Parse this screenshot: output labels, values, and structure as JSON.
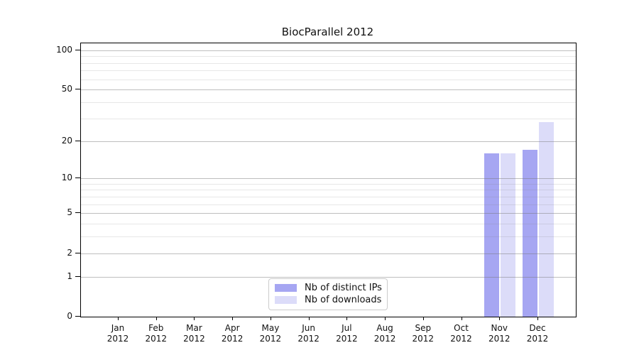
{
  "title": "BiocParallel 2012",
  "chart_data": {
    "type": "bar",
    "title": "BiocParallel 2012",
    "categories": [
      "Jan 2012",
      "Feb 2012",
      "Mar 2012",
      "Apr 2012",
      "May 2012",
      "Jun 2012",
      "Jul 2012",
      "Aug 2012",
      "Sep 2012",
      "Oct 2012",
      "Nov 2012",
      "Dec 2012"
    ],
    "series": [
      {
        "name": "Nb of distinct IPs",
        "color": "#a6a6f2",
        "values": [
          0,
          0,
          0,
          0,
          0,
          0,
          0,
          0,
          0,
          0,
          16,
          17
        ]
      },
      {
        "name": "Nb of downloads",
        "color": "#dcdcf9",
        "values": [
          0,
          0,
          0,
          0,
          0,
          0,
          0,
          0,
          0,
          0,
          16,
          28
        ]
      }
    ],
    "yscale": "log1p",
    "ylim": [
      0,
      113
    ],
    "yticks": [
      0,
      1,
      2,
      5,
      10,
      20,
      50,
      100
    ],
    "yticks_minor": [
      3,
      4,
      6,
      7,
      8,
      9,
      30,
      40,
      60,
      70,
      80,
      90
    ],
    "xlabel": "",
    "ylabel": "",
    "grid": true,
    "legend_position": "bottom-center",
    "background": "#ffffff",
    "spine_color": "#000000"
  }
}
